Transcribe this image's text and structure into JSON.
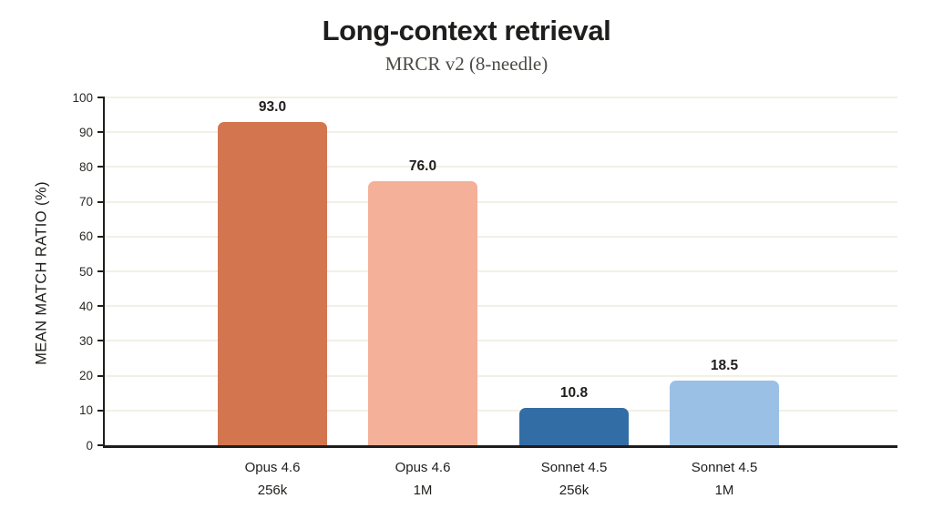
{
  "title": "Long-context retrieval",
  "subtitle": "MRCR v2 (8-needle)",
  "chart_data": {
    "type": "bar",
    "title": "Long-context retrieval",
    "subtitle": "MRCR v2 (8-needle)",
    "ylabel": "MEAN MATCH RATIO (%)",
    "xlabel": "",
    "ylim": [
      0,
      100
    ],
    "ytick_interval": 10,
    "yticks": [
      "0",
      "10",
      "20",
      "30",
      "40",
      "50",
      "60",
      "70",
      "80",
      "90",
      "100"
    ],
    "grid": "horizontal",
    "grid_color": "#f2f0e5",
    "axis_color": "#1f1e1c",
    "legend": "none",
    "categories": [
      {
        "line1": "Opus 4.6",
        "line2": "256k"
      },
      {
        "line1": "Opus 4.6",
        "line2": "1M"
      },
      {
        "line1": "Sonnet 4.5",
        "line2": "256k"
      },
      {
        "line1": "Sonnet 4.5",
        "line2": "1M"
      }
    ],
    "values": [
      93.0,
      76.0,
      10.8,
      18.5
    ],
    "value_labels": [
      "93.0",
      "76.0",
      "10.8",
      "18.5"
    ],
    "bar_colors": [
      "#d3754f",
      "#f4b098",
      "#336da6",
      "#9ac0e5"
    ]
  }
}
